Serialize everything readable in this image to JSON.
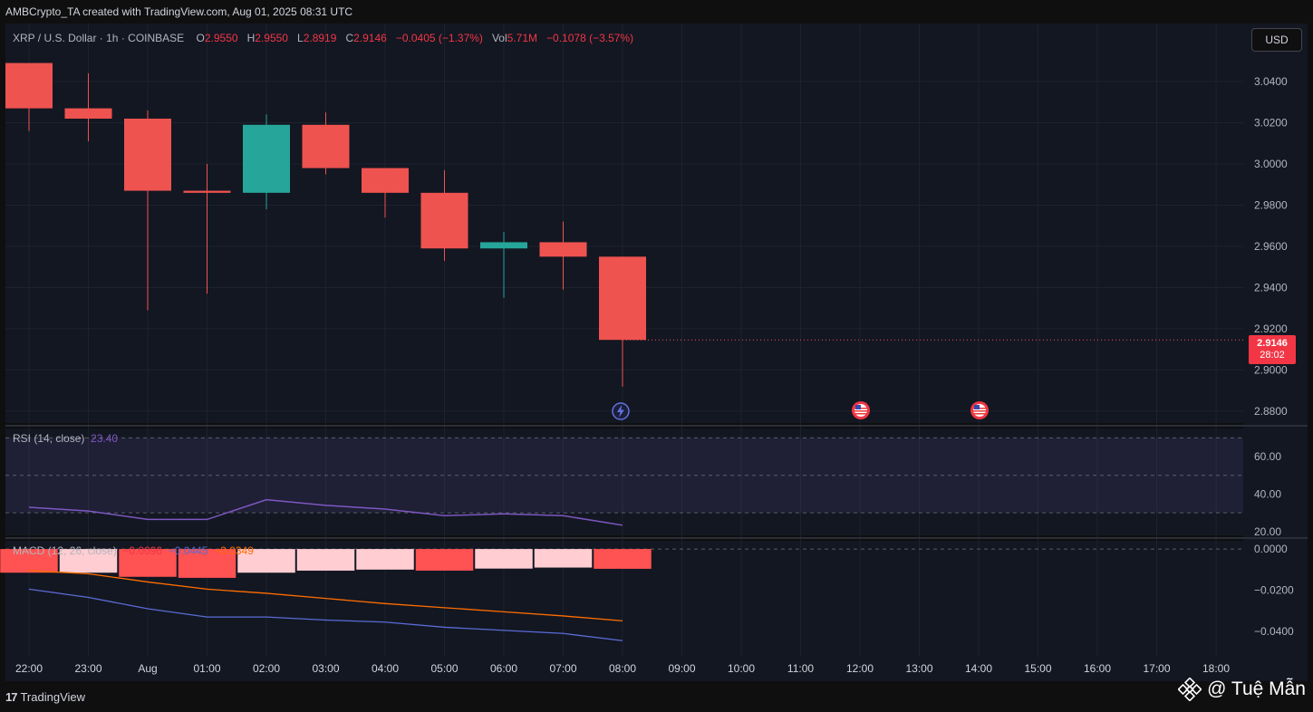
{
  "header": {
    "attribution": "AMBCrypto_TA created with TradingView.com, Aug 01, 2025 08:31 UTC"
  },
  "legend": {
    "symbol": "XRP / U.S. Dollar · 1h · COINBASE",
    "o_label": "O",
    "o": "2.9550",
    "h_label": "H",
    "h": "2.9550",
    "l_label": "L",
    "l": "2.8919",
    "c_label": "C",
    "c": "2.9146",
    "change": "−0.0405 (−1.37%)",
    "vol_label": "Vol",
    "vol": "5.71M",
    "vol_change": "−0.1078 (−3.57%)"
  },
  "currency_button": "USD",
  "last_price": {
    "price": "2.9146",
    "countdown": "28:02"
  },
  "rsi_legend": {
    "label": "RSI (14, close)",
    "value": "23.40"
  },
  "macd_legend": {
    "label": "MACD (12, 26, close)",
    "hist": "−0.0096",
    "macd": "−0.0445",
    "signal": "−0.0349"
  },
  "branding": {
    "logo_text": "TradingView",
    "watermark": "@ Tuệ Mẫn"
  },
  "icons": {
    "events": [
      "lightning-icon",
      "us-flag-icon",
      "us-flag-icon"
    ],
    "watermark": "binance-logo-icon"
  },
  "colors": {
    "up": "#26a69a",
    "down": "#ef5350",
    "rsi_line": "#7e57c2",
    "macd_line": "#5b6bd6",
    "signal_line": "#ff6d00",
    "hist_neg_light": "#ffcdd2",
    "hist_neg_dark": "#ff5252"
  },
  "chart_data": [
    {
      "type": "candlestick",
      "title": "XRP / U.S. Dollar · 1h · COINBASE",
      "x_ticks": [
        "22:00",
        "23:00",
        "Aug",
        "01:00",
        "02:00",
        "03:00",
        "04:00",
        "05:00",
        "06:00",
        "07:00",
        "08:00",
        "09:00",
        "10:00",
        "11:00",
        "12:00",
        "13:00",
        "14:00",
        "15:00",
        "16:00",
        "17:00",
        "18:00"
      ],
      "y_ticks": [
        "3.0400",
        "3.0200",
        "3.0000",
        "2.9800",
        "2.9600",
        "2.9400",
        "2.9200",
        "2.9000",
        "2.8800"
      ],
      "ylim": [
        2.876,
        3.062
      ],
      "candles": [
        {
          "time": "22:00",
          "open": 3.049,
          "high": 3.049,
          "low": 3.016,
          "close": 3.027
        },
        {
          "time": "23:00",
          "open": 3.027,
          "high": 3.044,
          "low": 3.011,
          "close": 3.022
        },
        {
          "time": "00:00",
          "open": 3.022,
          "high": 3.026,
          "low": 2.929,
          "close": 2.987
        },
        {
          "time": "01:00",
          "open": 2.987,
          "high": 3.0,
          "low": 2.937,
          "close": 2.986
        },
        {
          "time": "02:00",
          "open": 2.986,
          "high": 3.024,
          "low": 2.978,
          "close": 3.019
        },
        {
          "time": "03:00",
          "open": 3.019,
          "high": 3.025,
          "low": 2.995,
          "close": 2.998
        },
        {
          "time": "04:00",
          "open": 2.998,
          "high": 2.998,
          "low": 2.974,
          "close": 2.986
        },
        {
          "time": "05:00",
          "open": 2.986,
          "high": 2.997,
          "low": 2.953,
          "close": 2.959
        },
        {
          "time": "06:00",
          "open": 2.959,
          "high": 2.967,
          "low": 2.935,
          "close": 2.962
        },
        {
          "time": "07:00",
          "open": 2.962,
          "high": 2.972,
          "low": 2.939,
          "close": 2.955
        },
        {
          "time": "08:00",
          "open": 2.955,
          "high": 2.955,
          "low": 2.8919,
          "close": 2.9146
        }
      ]
    },
    {
      "type": "line",
      "title": "RSI (14, close)",
      "x": [
        "22:00",
        "23:00",
        "00:00",
        "01:00",
        "02:00",
        "03:00",
        "04:00",
        "05:00",
        "06:00",
        "07:00",
        "08:00"
      ],
      "series": [
        {
          "name": "RSI",
          "values": [
            33,
            31,
            26.5,
            26.5,
            37,
            34,
            32,
            28.5,
            29.5,
            28.5,
            23.4
          ]
        }
      ],
      "bands": [
        30,
        50,
        70
      ],
      "y_ticks": [
        "60.00",
        "40.00",
        "20.00"
      ],
      "ylim": [
        18,
        75
      ]
    },
    {
      "type": "bar+line",
      "title": "MACD (12, 26, close)",
      "x": [
        "22:00",
        "23:00",
        "00:00",
        "01:00",
        "02:00",
        "03:00",
        "04:00",
        "05:00",
        "06:00",
        "07:00",
        "08:00"
      ],
      "histogram": [
        -0.0115,
        -0.0115,
        -0.0135,
        -0.014,
        -0.0115,
        -0.0105,
        -0.01,
        -0.0105,
        -0.0095,
        -0.009,
        -0.0096
      ],
      "series": [
        {
          "name": "MACD",
          "values": [
            -0.0195,
            -0.0235,
            -0.029,
            -0.033,
            -0.033,
            -0.0345,
            -0.0355,
            -0.038,
            -0.0395,
            -0.041,
            -0.0445
          ]
        },
        {
          "name": "Signal",
          "values": [
            -0.0105,
            -0.012,
            -0.016,
            -0.0195,
            -0.0215,
            -0.024,
            -0.0265,
            -0.0285,
            -0.0305,
            -0.0325,
            -0.0349
          ]
        }
      ],
      "y_ticks": [
        "0.0000",
        "−0.0200",
        "−0.0400"
      ],
      "ylim": [
        -0.051,
        0.004
      ]
    }
  ]
}
